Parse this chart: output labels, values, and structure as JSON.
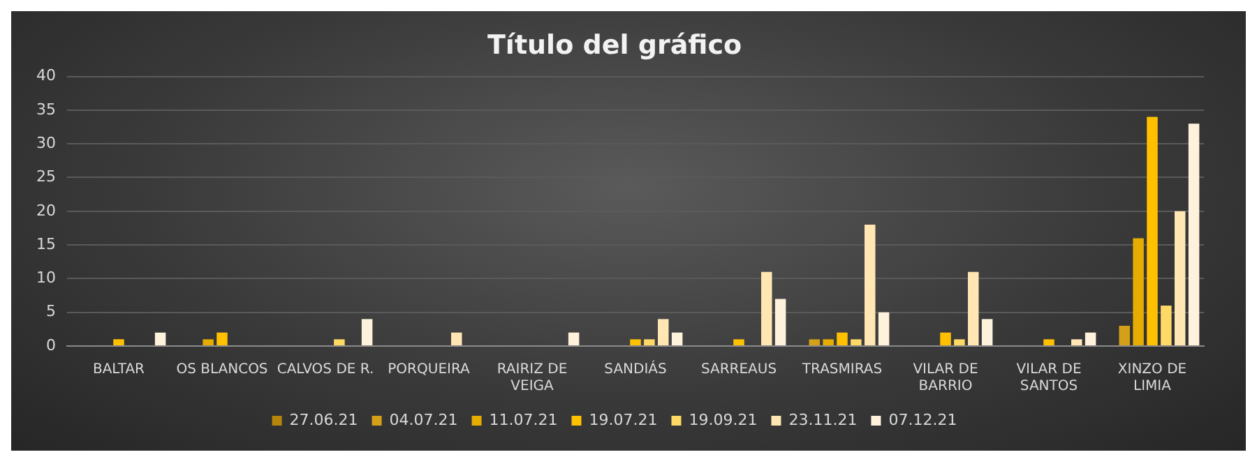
{
  "chart_data": {
    "type": "bar",
    "title": "Título del gráfico",
    "categories": [
      "BALTAR",
      "OS BLANCOS",
      "CALVOS DE R.",
      "PORQUEIRA",
      "RAIRIZ DE VEIGA",
      "SANDIÁS",
      "SARREAUS",
      "TRASMIRAS",
      "VILAR DE BARRIO",
      "VILAR DE SANTOS",
      "XINZO DE LIMIA"
    ],
    "series": [
      {
        "name": "27.06.21",
        "color": "#b8860b",
        "values": [
          0,
          0,
          0,
          0,
          0,
          0,
          0,
          0,
          0,
          0,
          0
        ]
      },
      {
        "name": "04.07.21",
        "color": "#d4a017",
        "values": [
          0,
          0,
          0,
          0,
          0,
          0,
          0,
          1,
          0,
          0,
          3
        ]
      },
      {
        "name": "11.07.21",
        "color": "#e6ac00",
        "values": [
          0,
          1,
          0,
          0,
          0,
          0,
          0,
          1,
          0,
          0,
          16
        ]
      },
      {
        "name": "19.07.21",
        "color": "#ffc000",
        "values": [
          1,
          2,
          0,
          0,
          0,
          1,
          1,
          2,
          2,
          1,
          34
        ]
      },
      {
        "name": "19.09.21",
        "color": "#ffd966",
        "values": [
          0,
          0,
          1,
          0,
          0,
          1,
          0,
          1,
          1,
          0,
          6
        ]
      },
      {
        "name": "23.11.21",
        "color": "#ffe6b3",
        "values": [
          0,
          0,
          0,
          2,
          0,
          4,
          11,
          18,
          11,
          1,
          20
        ]
      },
      {
        "name": "07.12.21",
        "color": "#fff2dc",
        "values": [
          2,
          0,
          4,
          0,
          2,
          2,
          7,
          5,
          4,
          2,
          33
        ]
      }
    ],
    "ylim": [
      0,
      40
    ],
    "yticks": [
      0,
      5,
      10,
      15,
      20,
      25,
      30,
      35,
      40
    ],
    "grid": "y",
    "legend": "bottom"
  }
}
